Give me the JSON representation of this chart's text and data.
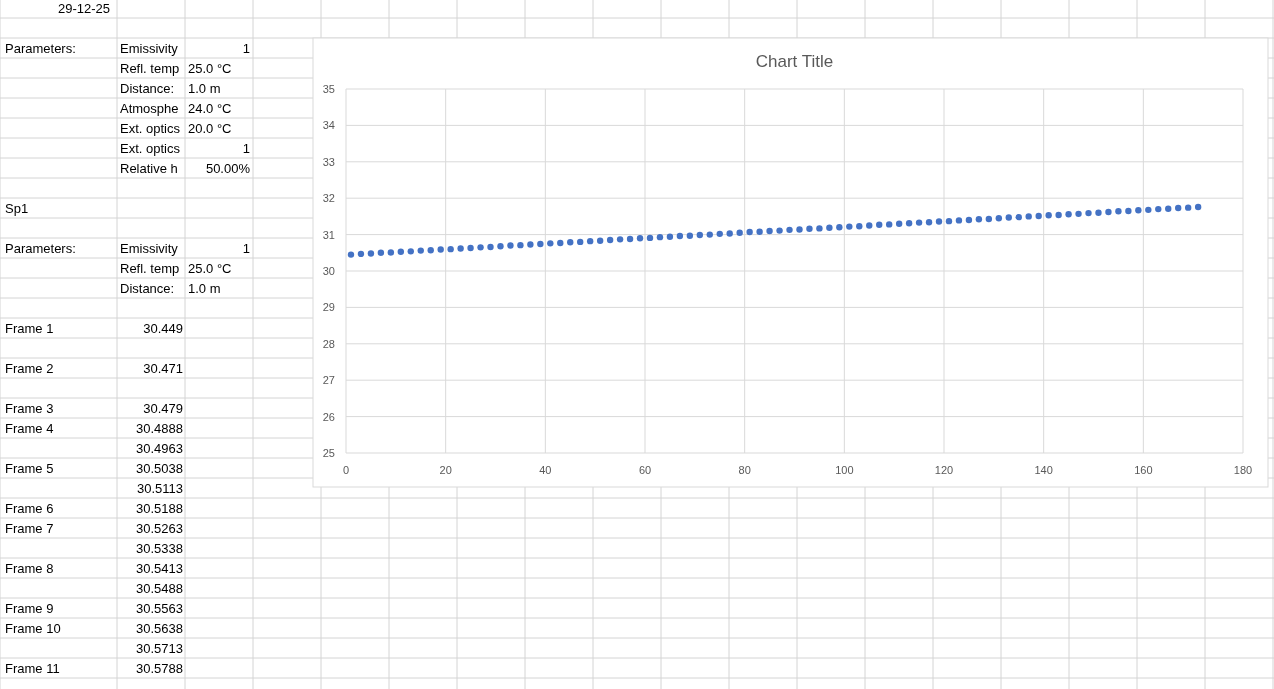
{
  "chart_data": {
    "type": "scatter",
    "title": "Chart Title",
    "x": [
      1,
      3,
      5,
      7,
      9,
      11,
      13,
      15,
      17,
      19,
      21,
      23,
      25,
      27,
      29,
      31,
      33,
      35,
      37,
      39,
      41,
      43,
      45,
      47,
      49,
      51,
      53,
      55,
      57,
      59,
      61,
      63,
      65,
      67,
      69,
      71,
      73,
      75,
      77,
      79,
      81,
      83,
      85,
      87,
      89,
      91,
      93,
      95,
      97,
      99,
      101,
      103,
      105,
      107,
      109,
      111,
      113,
      115,
      117,
      119,
      121,
      123,
      125,
      127,
      129,
      131,
      133,
      135,
      137,
      139,
      141,
      143,
      145,
      147,
      149,
      151,
      153,
      155,
      157,
      159,
      161,
      163,
      165,
      167,
      169,
      171
    ],
    "series": [
      {
        "color": "#4472c4",
        "values": [
          30.45,
          30.47,
          30.48,
          30.5,
          30.51,
          30.53,
          30.54,
          30.56,
          30.57,
          30.59,
          30.6,
          30.62,
          30.63,
          30.65,
          30.66,
          30.68,
          30.7,
          30.71,
          30.73,
          30.74,
          30.76,
          30.77,
          30.79,
          30.8,
          30.82,
          30.83,
          30.85,
          30.87,
          30.88,
          30.9,
          30.91,
          30.93,
          30.94,
          30.96,
          30.97,
          30.99,
          31.0,
          31.02,
          31.03,
          31.05,
          31.07,
          31.08,
          31.1,
          31.11,
          31.13,
          31.14,
          31.16,
          31.17,
          31.19,
          31.2,
          31.22,
          31.23,
          31.25,
          31.27,
          31.28,
          31.3,
          31.31,
          31.33,
          31.34,
          31.36,
          31.37,
          31.39,
          31.4,
          31.42,
          31.43,
          31.45,
          31.47,
          31.48,
          31.5,
          31.51,
          31.53,
          31.54,
          31.56,
          31.57,
          31.59,
          31.6,
          31.62,
          31.64,
          31.65,
          31.67,
          31.68,
          31.7,
          31.71,
          31.73,
          31.74,
          31.76
        ]
      }
    ],
    "xlim": [
      0,
      180
    ],
    "xticks": [
      0,
      20,
      40,
      60,
      80,
      100,
      120,
      140,
      160,
      180
    ],
    "ylim": [
      25,
      35
    ],
    "yticks": [
      25,
      26,
      27,
      28,
      29,
      30,
      31,
      32,
      33,
      34,
      35
    ],
    "grid": true,
    "marker": "circle",
    "annotations": [
      "29-12-25",
      "Parameters:",
      "Emissivity",
      "1",
      "Refl. temp",
      "25.0 °C",
      "Distance:",
      "1.0 m",
      "Atmosphe",
      "24.0 °C",
      "Ext. optics",
      "20.0 °C",
      "Ext. optics",
      "1",
      "Relative h",
      "50.00%",
      "Sp1",
      "Parameters:",
      "Emissivity",
      "1",
      "Refl. temp",
      "25.0 °C",
      "Distance:",
      "1.0 m",
      "Frame 1",
      "30.449",
      "Frame 2",
      "30.471",
      "Frame 3",
      "30.479",
      "Frame 4",
      "30.4888",
      "30.4963",
      "Frame 5",
      "30.5038",
      "30.5113",
      "Frame 6",
      "30.5188",
      "Frame 7",
      "30.5263",
      "30.5338",
      "Frame 8",
      "30.5413",
      "30.5488",
      "Frame 9",
      "30.5563",
      "Frame 10",
      "30.5638",
      "30.5713",
      "Frame 11",
      "30.5788"
    ]
  }
}
